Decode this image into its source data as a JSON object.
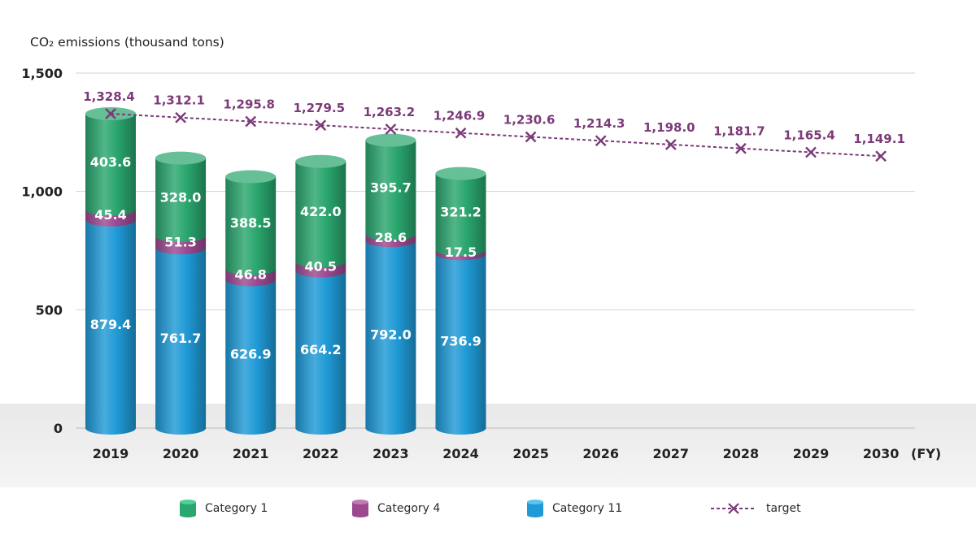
{
  "chart_data": {
    "type": "bar",
    "stacked": true,
    "ylabel": "CO₂ emissions (thousand tons)",
    "xunit": "(FY)",
    "ylim": [
      0,
      1500
    ],
    "yticks": [
      0,
      500,
      1000,
      1500
    ],
    "ytick_labels": [
      "0",
      "500",
      "1,000",
      "1,500"
    ],
    "grid": true,
    "legend_position": "bottom",
    "categories": [
      "2019",
      "2020",
      "2021",
      "2022",
      "2023",
      "2024",
      "2025",
      "2026",
      "2027",
      "2028",
      "2029",
      "2030"
    ],
    "series": [
      {
        "name": "Category 11",
        "color": "#1f9ad6",
        "values": [
          879.4,
          761.7,
          626.9,
          664.2,
          792.0,
          736.9,
          null,
          null,
          null,
          null,
          null,
          null
        ],
        "labels": [
          "879.4",
          "761.7",
          "626.9",
          "664.2",
          "792.0",
          "736.9",
          "",
          "",
          "",
          "",
          "",
          ""
        ]
      },
      {
        "name": "Category 4",
        "color": "#9b4a90",
        "values": [
          45.4,
          51.3,
          46.8,
          40.5,
          28.6,
          17.5,
          null,
          null,
          null,
          null,
          null,
          null
        ],
        "labels": [
          "45.4",
          "51.3",
          "46.8",
          "40.5",
          "28.6",
          "17.5",
          "",
          "",
          "",
          "",
          "",
          ""
        ]
      },
      {
        "name": "Category 1",
        "color": "#2aa66e",
        "values": [
          403.6,
          328.0,
          388.5,
          422.0,
          395.7,
          321.2,
          null,
          null,
          null,
          null,
          null,
          null
        ],
        "labels": [
          "403.6",
          "328.0",
          "388.5",
          "422.0",
          "395.7",
          "321.2",
          "",
          "",
          "",
          "",
          "",
          ""
        ]
      }
    ],
    "target": {
      "name": "target",
      "color": "#7b3a78",
      "values": [
        1328.4,
        1312.1,
        1295.8,
        1279.5,
        1263.2,
        1246.9,
        1230.6,
        1214.3,
        1198.0,
        1181.7,
        1165.4,
        1149.1
      ],
      "labels": [
        "1,328.4",
        "1,312.1",
        "1,295.8",
        "1,279.5",
        "1,263.2",
        "1,246.9",
        "1,230.6",
        "1,214.3",
        "1,198.0",
        "1,181.7",
        "1,165.4",
        "1,149.1"
      ]
    },
    "legend": [
      "Category 1",
      "Category 4",
      "Category 11",
      "target"
    ]
  }
}
